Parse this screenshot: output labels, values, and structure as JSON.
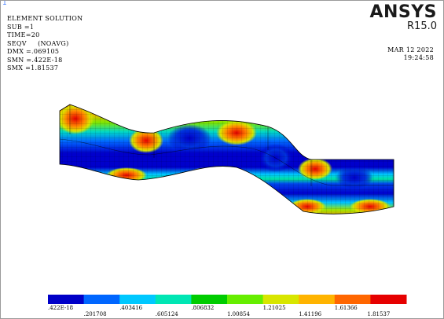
{
  "window_number": "1",
  "info": {
    "title": "ELEMENT SOLUTION",
    "sub": "SUB =1",
    "time": "TIME=20",
    "result": "SEQV     (NOAVG)",
    "dmx": "DMX =.069105",
    "smn": "SMN =.422E-18",
    "smx": "SMX =1.81537"
  },
  "brand": {
    "name": "ANSYS",
    "version": "R15.0"
  },
  "stamp": {
    "date": "MAR 12 2022",
    "time": "19:24:58"
  },
  "legend": {
    "colors": [
      "#0000c8",
      "#0066ff",
      "#00c8ff",
      "#00e6b4",
      "#00cc00",
      "#66ee00",
      "#d8e600",
      "#ffb400",
      "#ff6600",
      "#e60000"
    ],
    "labels": [
      ".422E-18",
      ".201708",
      ".403416",
      ".605124",
      ".806832",
      "1.00854",
      "1.21025",
      "1.41196",
      "1.61366",
      "1.81537"
    ]
  }
}
